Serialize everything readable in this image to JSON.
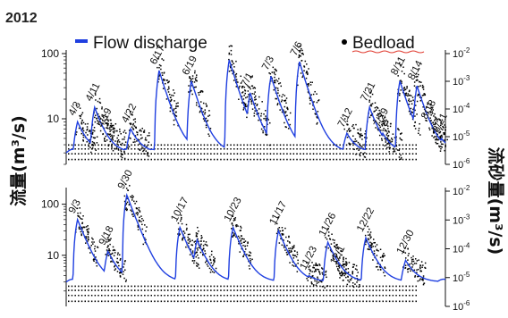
{
  "year": "2012",
  "legend": {
    "flow_label": "Flow discharge",
    "bedload_label": "Bedload",
    "flow_color": "#1f3fe0",
    "bedload_color": "#000000",
    "placement": "top"
  },
  "left_axis_label": "流量(m³/s)",
  "right_axis_label": "流砂量(m³/s)",
  "chart_data": [
    {
      "type": "line",
      "panel": "top",
      "yscale_left": "log",
      "ylim_left": [
        2,
        100
      ],
      "left_ticks": [
        {
          "v": 100,
          "label": "100"
        },
        {
          "v": 10,
          "label": "10"
        }
      ],
      "yscale_right": "log",
      "ylim_right": [
        1e-06,
        0.01
      ],
      "right_ticks": [
        {
          "base": "10",
          "exp": "-2",
          "v": 0.01
        },
        {
          "base": "10",
          "exp": "-3",
          "v": 0.001
        },
        {
          "base": "10",
          "exp": "-4",
          "v": 0.0001
        },
        {
          "base": "10",
          "exp": "-5",
          "v": 1e-05
        },
        {
          "base": "10",
          "exp": "-6",
          "v": 1e-06
        }
      ],
      "baseline": 3,
      "events": [
        {
          "label": "4/3",
          "t": 0.03,
          "peak": 9
        },
        {
          "label": "4/11",
          "t": 0.075,
          "peak": 15
        },
        {
          "label": "4/19",
          "t": 0.105,
          "peak": 6
        },
        {
          "label": "4/22",
          "t": 0.17,
          "peak": 7
        },
        {
          "label": "6/17",
          "t": 0.245,
          "peak": 55
        },
        {
          "label": "6/19",
          "t": 0.33,
          "peak": 38
        },
        {
          "label": "",
          "t": 0.43,
          "peak": 80
        },
        {
          "label": "7/1",
          "t": 0.485,
          "peak": 25
        },
        {
          "label": "7/3",
          "t": 0.54,
          "peak": 45
        },
        {
          "label": "7/6",
          "t": 0.615,
          "peak": 75
        },
        {
          "label": "7/12",
          "t": 0.74,
          "peak": 6
        },
        {
          "label": "7/21",
          "t": 0.8,
          "peak": 15
        },
        {
          "label": "7/29",
          "t": 0.835,
          "peak": 6
        },
        {
          "label": "8/11",
          "t": 0.88,
          "peak": 38
        },
        {
          "label": "8/14",
          "t": 0.925,
          "peak": 32
        },
        {
          "label": "8/18",
          "t": 0.96,
          "peak": 8
        },
        {
          "label": "8/21",
          "t": 0.99,
          "peak": 5
        }
      ]
    },
    {
      "type": "line",
      "panel": "bottom",
      "yscale_left": "log",
      "ylim_left": [
        1,
        180
      ],
      "left_ticks": [
        {
          "v": 100,
          "label": "100"
        },
        {
          "v": 10,
          "label": "10"
        }
      ],
      "yscale_right": "log",
      "ylim_right": [
        1e-06,
        0.01
      ],
      "right_ticks": [
        {
          "base": "10",
          "exp": "-2",
          "v": 0.01
        },
        {
          "base": "10",
          "exp": "-3",
          "v": 0.001
        },
        {
          "base": "10",
          "exp": "-4",
          "v": 0.0001
        },
        {
          "base": "10",
          "exp": "-5",
          "v": 1e-05
        },
        {
          "base": "10",
          "exp": "-6",
          "v": 1e-06
        }
      ],
      "baseline": 3,
      "events": [
        {
          "label": "9/3",
          "t": 0.03,
          "peak": 50
        },
        {
          "label": "9/18",
          "t": 0.11,
          "peak": 12
        },
        {
          "label": "9/30",
          "t": 0.16,
          "peak": 150
        },
        {
          "label": "10/17",
          "t": 0.3,
          "peak": 35
        },
        {
          "label": "",
          "t": 0.345,
          "peak": 20
        },
        {
          "label": "10/23",
          "t": 0.44,
          "peak": 35
        },
        {
          "label": "11/17",
          "t": 0.56,
          "peak": 30
        },
        {
          "label": "11/23",
          "t": 0.64,
          "peak": 4
        },
        {
          "label": "11/26",
          "t": 0.69,
          "peak": 18
        },
        {
          "label": "12/1",
          "t": 0.72,
          "peak": 5
        },
        {
          "label": "12/22",
          "t": 0.79,
          "peak": 22
        },
        {
          "label": "12/30",
          "t": 0.895,
          "peak": 8
        }
      ]
    }
  ]
}
